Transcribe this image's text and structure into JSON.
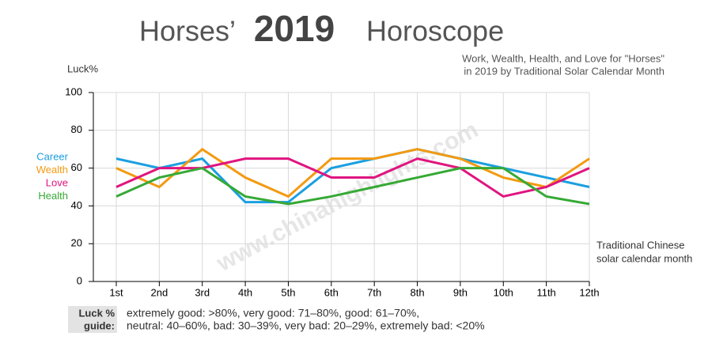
{
  "chart_data": {
    "type": "line",
    "title_prefix": "Horses’",
    "title_year": "2019",
    "title_suffix": "Horoscope",
    "subtitle": [
      "Work, Wealth, Health, and Love for \"Horses\"",
      "in 2019 by Traditional Solar Calendar Month"
    ],
    "y_label": "Luck%",
    "x_label": [
      "Traditional Chinese",
      "solar calendar month"
    ],
    "watermark": "www.chinahighlights.com",
    "categories": [
      "1st",
      "2nd",
      "3rd",
      "4th",
      "5th",
      "6th",
      "7th",
      "8th",
      "9th",
      "10th",
      "11th",
      "12th"
    ],
    "series": [
      {
        "name": "Career",
        "color": "#1b9fe0",
        "values": [
          65,
          60,
          65,
          42,
          42,
          60,
          65,
          70,
          65,
          60,
          55,
          50
        ]
      },
      {
        "name": "Wealth",
        "color": "#f39a12",
        "values": [
          60,
          50,
          70,
          55,
          45,
          65,
          65,
          70,
          65,
          55,
          50,
          65
        ]
      },
      {
        "name": "Love",
        "color": "#e0147f",
        "values": [
          50,
          60,
          60,
          65,
          65,
          55,
          55,
          65,
          60,
          45,
          50,
          60
        ]
      },
      {
        "name": "Health",
        "color": "#36a935",
        "values": [
          45,
          55,
          60,
          45,
          41,
          45,
          50,
          55,
          60,
          60,
          45,
          41
        ]
      }
    ],
    "ylim": [
      0,
      100
    ],
    "yticks": [
      0,
      20,
      40,
      60,
      80,
      100
    ],
    "grid": true,
    "guide_label": [
      "Luck %",
      "guide:"
    ],
    "guide_text": [
      "extremely good: >80%, very good: 71–80%, good: 61–70%,",
      "neutral: 40–60%, bad: 30–39%, very bad: 20–29%, extremely bad: <20%"
    ]
  }
}
